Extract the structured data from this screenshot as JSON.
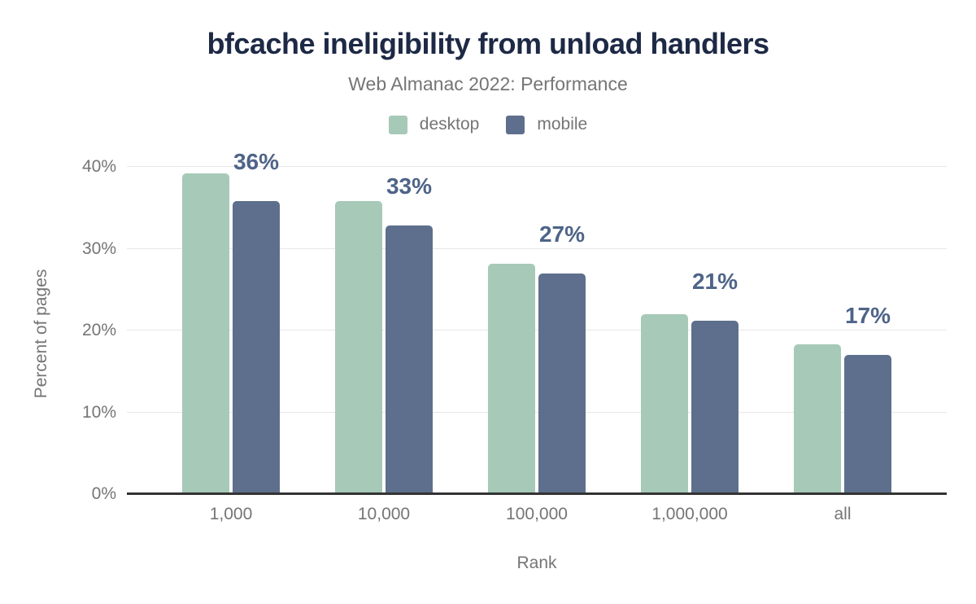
{
  "title": "bfcache ineligibility from unload handlers",
  "subtitle": "Web Almanac 2022: Performance",
  "colors": {
    "background": "#ffffff",
    "title": "#1d2945",
    "subtitle": "#757575",
    "axis_text": "#757575",
    "gridline": "#e7e7e7",
    "axis_line": "#333333",
    "data_label": "#4e6488",
    "desktop": "#a7c9b8",
    "mobile": "#5d6f8c"
  },
  "legend": [
    {
      "label": "desktop",
      "color": "#a7c9b8"
    },
    {
      "label": "mobile",
      "color": "#5d6f8c"
    }
  ],
  "chart_data": {
    "type": "bar",
    "title": "bfcache ineligibility from unload handlers",
    "subtitle": "Web Almanac 2022: Performance",
    "categories": [
      "1,000",
      "10,000",
      "100,000",
      "1,000,000",
      "all"
    ],
    "series": [
      {
        "name": "desktop",
        "color": "#a7c9b8",
        "values": [
          39.2,
          35.8,
          28.2,
          22.0,
          18.3
        ]
      },
      {
        "name": "mobile",
        "color": "#5d6f8c",
        "values": [
          35.8,
          32.8,
          27.0,
          21.2,
          17.0
        ]
      }
    ],
    "data_labels": [
      "36%",
      "33%",
      "27%",
      "21%",
      "17%"
    ],
    "data_label_series": "mobile",
    "xlabel": "Rank",
    "ylabel": "Percent of pages",
    "y_ticks": [
      "0%",
      "10%",
      "20%",
      "30%",
      "40%"
    ],
    "ylim": [
      0,
      42.5
    ],
    "grid": true,
    "legend_position": "top"
  }
}
